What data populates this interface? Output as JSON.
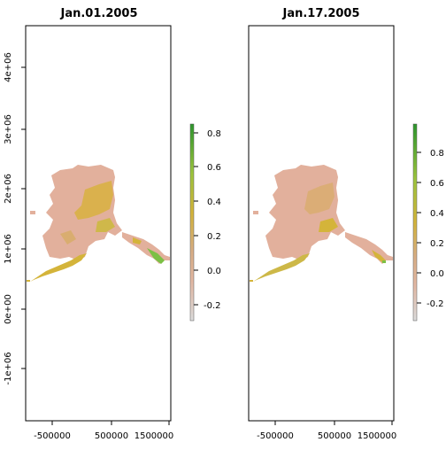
{
  "panels": [
    {
      "title": "Jan.01.2005",
      "legend_ticks": [
        "0.8",
        "0.6",
        "0.4",
        "0.2",
        "0.0",
        "-0.2"
      ],
      "legend_range": [
        -0.3,
        0.85
      ]
    },
    {
      "title": "Jan.17.2005",
      "legend_ticks": [
        "0.8",
        "0.6",
        "0.4",
        "0.2",
        "0.0",
        "-0.2"
      ],
      "legend_range": [
        -0.3,
        1.0
      ]
    }
  ],
  "x_ticks": [
    "-500000",
    "500000",
    "1500000"
  ],
  "y_ticks": [
    "4e+06",
    "3e+06",
    "2e+06",
    "1e+06",
    "0e+00",
    "-1e+06"
  ],
  "colors": {
    "low": "#d9d9d9",
    "mid_low": "#e0b59c",
    "mid": "#d4b43a",
    "high": "#7cc044",
    "top": "#2e9a2e"
  }
}
